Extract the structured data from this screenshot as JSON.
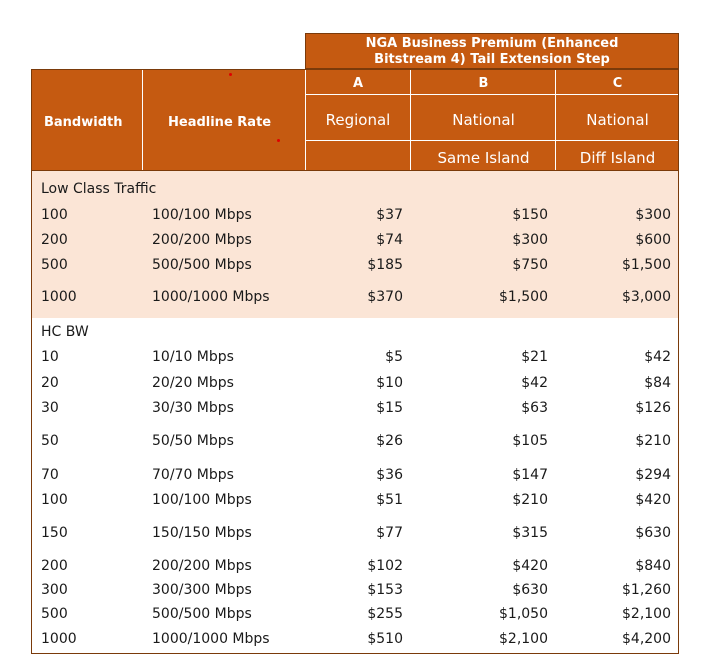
{
  "header": {
    "group_title_line1": "NGA Business Premium (Enhanced",
    "group_title_line2": "Bitstream 4) Tail Extension Step",
    "col_bandwidth": "Bandwidth",
    "col_headline": "Headline Rate",
    "col_a_letter": "A",
    "col_b_letter": "B",
    "col_c_letter": "C",
    "col_a_label": "Regional",
    "col_b_label": "National",
    "col_c_label": "National",
    "col_b_sub": "Same Island",
    "col_c_sub": "Diff Island"
  },
  "low_class": {
    "title": "Low Class Traffic",
    "rows": [
      {
        "bw": "100",
        "rate": "100/100 Mbps",
        "a": "$37",
        "b": "$150",
        "c": "$300"
      },
      {
        "bw": "200",
        "rate": "200/200 Mbps",
        "a": "$74",
        "b": "$300",
        "c": "$600"
      },
      {
        "bw": "500",
        "rate": "500/500 Mbps",
        "a": "$185",
        "b": "$750",
        "c": "$1,500"
      },
      {
        "bw": "1000",
        "rate": "1000/1000 Mbps",
        "a": "$370",
        "b": "$1,500",
        "c": "$3,000"
      }
    ]
  },
  "hc_bw": {
    "title": "HC BW",
    "rows": [
      {
        "bw": "10",
        "rate": "10/10 Mbps",
        "a": "$5",
        "b": "$21",
        "c": "$42"
      },
      {
        "bw": "20",
        "rate": "20/20 Mbps",
        "a": "$10",
        "b": "$42",
        "c": "$84"
      },
      {
        "bw": "30",
        "rate": "30/30 Mbps",
        "a": "$15",
        "b": "$63",
        "c": "$126"
      },
      {
        "bw": "50",
        "rate": "50/50 Mbps",
        "a": "$26",
        "b": "$105",
        "c": "$210"
      },
      {
        "bw": "70",
        "rate": "70/70 Mbps",
        "a": "$36",
        "b": "$147",
        "c": "$294"
      },
      {
        "bw": "100",
        "rate": "100/100 Mbps",
        "a": "$51",
        "b": "$210",
        "c": "$420"
      },
      {
        "bw": "150",
        "rate": "150/150 Mbps",
        "a": "$77",
        "b": "$315",
        "c": "$630"
      },
      {
        "bw": "200",
        "rate": "200/200 Mbps",
        "a": "$102",
        "b": "$420",
        "c": "$840"
      },
      {
        "bw": "300",
        "rate": "300/300 Mbps",
        "a": "$153",
        "b": "$630",
        "c": "$1,260"
      },
      {
        "bw": "500",
        "rate": "500/500 Mbps",
        "a": "$255",
        "b": "$1,050",
        "c": "$2,100"
      },
      {
        "bw": "1000",
        "rate": "1000/1000 Mbps",
        "a": "$510",
        "b": "$2,100",
        "c": "$4,200"
      }
    ]
  },
  "colors": {
    "header_orange": "#c55a11",
    "low_class_fill": "#fbe5d6"
  }
}
